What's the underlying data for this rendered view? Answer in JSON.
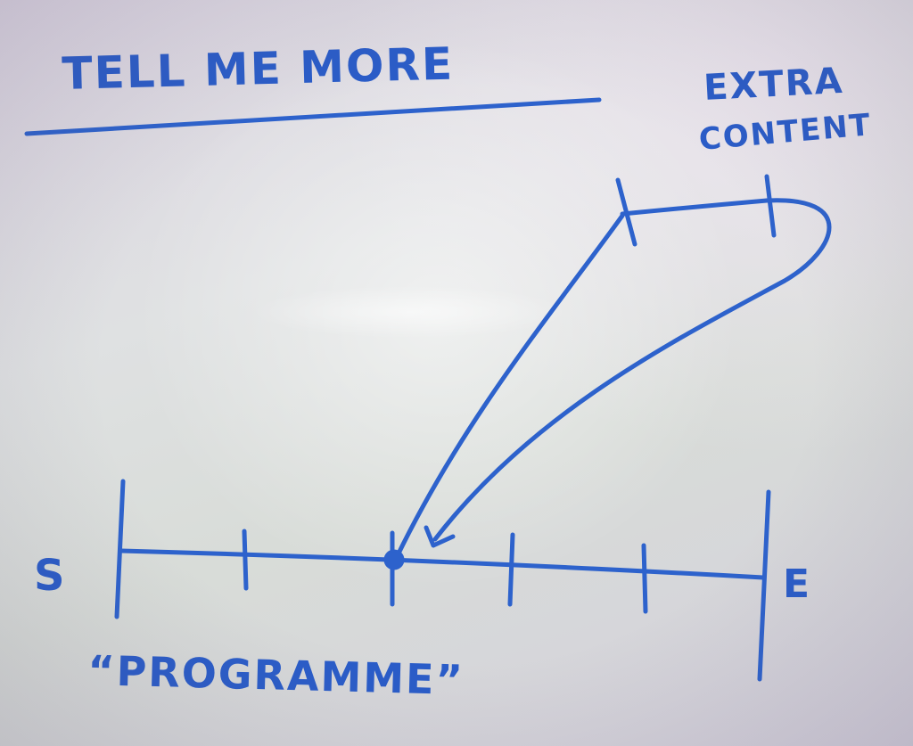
{
  "title": "TELL ME MORE",
  "extra_content": {
    "line1": "EXTRA",
    "line2": "CONTENT"
  },
  "timeline": {
    "start_label": "S",
    "end_label": "E",
    "caption": "“PROGRAMME”"
  },
  "ink_color": "#2d62cc"
}
